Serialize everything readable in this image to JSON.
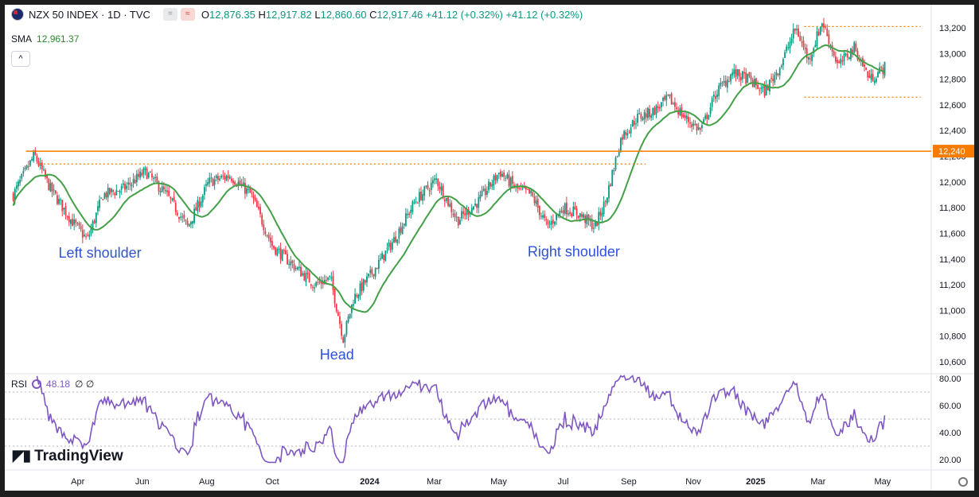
{
  "header": {
    "symbol": "NZX 50 INDEX · 1D · TVC",
    "ohlc": [
      {
        "k": "O",
        "v": "12,876.35"
      },
      {
        "k": "H",
        "v": "12,917.82"
      },
      {
        "k": "L",
        "v": "12,860.60"
      },
      {
        "k": "C",
        "v": "12,917.46"
      }
    ],
    "change": "+41.12 (+0.32%) +41.12 (+0.32%)",
    "pill_a": "=",
    "pill_b": "≈"
  },
  "sma": {
    "label": "SMA",
    "value": "12,961.37"
  },
  "rsi": {
    "label": "RSI",
    "value": "48.18",
    "extra": "∅ ∅"
  },
  "brand": "TradingView",
  "colors": {
    "candle_up": "#089981",
    "candle_down": "#f23645",
    "sma": "#43a047",
    "rsi": "#7e57c2",
    "resistance": "#f57c00",
    "annotation": "#2f52d9"
  },
  "annotations": [
    {
      "id": "left-shoulder",
      "label": "Left shoulder"
    },
    {
      "id": "head",
      "label": "Head"
    },
    {
      "id": "right-shoulder",
      "label": "Right shoulder"
    }
  ],
  "chart_data": {
    "type": "candlestick",
    "title": "NZX 50 INDEX · 1D · TVC",
    "ylim": [
      10500,
      13300
    ],
    "yticks": [
      10600,
      10800,
      11000,
      11200,
      11400,
      11600,
      11800,
      12000,
      12200,
      12400,
      12600,
      12800,
      13000,
      13200
    ],
    "price_tag": "12,240",
    "resistance_level": 12240,
    "x_labels": [
      "Apr",
      "Jun",
      "Aug",
      "Oct",
      "2024",
      "Mar",
      "May",
      "Jul",
      "Sep",
      "Nov",
      "2025",
      "Mar",
      "May"
    ],
    "x_range_days": [
      0,
      660
    ],
    "x_label_days": [
      61,
      122,
      183,
      245,
      337,
      398,
      459,
      520,
      582,
      643,
      702,
      761,
      822
    ],
    "close_path": [
      [
        0,
        11900
      ],
      [
        20,
        12210
      ],
      [
        35,
        11950
      ],
      [
        55,
        11700
      ],
      [
        70,
        11550
      ],
      [
        85,
        11900
      ],
      [
        105,
        11950
      ],
      [
        125,
        12080
      ],
      [
        145,
        11900
      ],
      [
        165,
        11650
      ],
      [
        185,
        12000
      ],
      [
        205,
        12050
      ],
      [
        225,
        11900
      ],
      [
        245,
        11500
      ],
      [
        265,
        11350
      ],
      [
        285,
        11200
      ],
      [
        300,
        11250
      ],
      [
        312,
        10780
      ],
      [
        322,
        11100
      ],
      [
        340,
        11300
      ],
      [
        360,
        11550
      ],
      [
        380,
        11850
      ],
      [
        400,
        12020
      ],
      [
        420,
        11700
      ],
      [
        440,
        11850
      ],
      [
        460,
        12080
      ],
      [
        475,
        11950
      ],
      [
        490,
        11900
      ],
      [
        505,
        11650
      ],
      [
        520,
        11800
      ],
      [
        535,
        11750
      ],
      [
        550,
        11650
      ],
      [
        560,
        11850
      ],
      [
        575,
        12350
      ],
      [
        590,
        12500
      ],
      [
        605,
        12550
      ],
      [
        620,
        12650
      ],
      [
        635,
        12500
      ],
      [
        650,
        12400
      ],
      [
        665,
        12700
      ],
      [
        680,
        12850
      ],
      [
        695,
        12800
      ],
      [
        710,
        12700
      ],
      [
        725,
        12900
      ],
      [
        740,
        13200
      ],
      [
        752,
        12950
      ],
      [
        765,
        13250
      ],
      [
        780,
        12900
      ],
      [
        795,
        13050
      ],
      [
        810,
        12800
      ],
      [
        825,
        12900
      ]
    ],
    "rsi": {
      "ylim": [
        15,
        85
      ],
      "yticks": [
        20,
        40,
        60,
        80
      ],
      "ref_lines": [
        70,
        50,
        30
      ]
    },
    "annotations": [
      {
        "label": "Left shoulder",
        "x": 82,
        "y": 11410
      },
      {
        "label": "Head",
        "x": 306,
        "y": 10620
      },
      {
        "label": "Right shoulder",
        "x": 530,
        "y": 11420
      }
    ],
    "dotted_levels": [
      {
        "y": 12140,
        "x0": 25,
        "x1": 598
      },
      {
        "y": 13210,
        "x0": 748,
        "x1": 858
      },
      {
        "y": 12660,
        "x0": 748,
        "x1": 858
      }
    ]
  }
}
